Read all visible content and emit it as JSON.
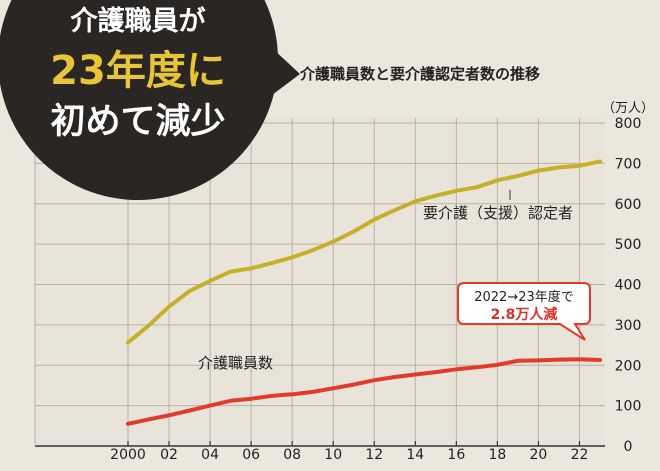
{
  "headline": {
    "line1": "介護職員が",
    "line2": "23年度に",
    "line3": "初めて減少"
  },
  "colors": {
    "background": "#ece7dd",
    "grid": "#b8b2a6",
    "badge": "#2a2624",
    "badge_text": "#ffffff",
    "badge_highlight": "#e7c43a",
    "care_recipients": "#c5b02a",
    "care_workers": "#e23b2c",
    "callout_text": "#d9332a",
    "text": "#222222"
  },
  "chart_data": {
    "type": "line",
    "title": "介護職員数と要介護認定者数の推移",
    "unit_label": "（万人）",
    "ylim": [
      0,
      800
    ],
    "y_ticks": [
      0,
      100,
      200,
      300,
      400,
      500,
      600,
      700,
      800
    ],
    "x_ticks": [
      2000,
      2002,
      2004,
      2006,
      2008,
      2010,
      2012,
      2014,
      2016,
      2018,
      2020,
      2022
    ],
    "x_tick_labels": [
      "2000",
      "02",
      "04",
      "06",
      "08",
      "10",
      "12",
      "14",
      "16",
      "18",
      "20",
      "22"
    ],
    "xlim": [
      2000,
      2023
    ],
    "grid": true,
    "series": [
      {
        "name": "要介護（支援）認定者",
        "color_key": "care_recipients",
        "x": [
          2000,
          2001,
          2002,
          2003,
          2004,
          2005,
          2006,
          2007,
          2008,
          2009,
          2010,
          2011,
          2012,
          2013,
          2014,
          2015,
          2016,
          2017,
          2018,
          2019,
          2020,
          2021,
          2022,
          2023
        ],
        "values": [
          256,
          298,
          345,
          384,
          409,
          432,
          440,
          453,
          467,
          485,
          506,
          531,
          561,
          584,
          606,
          620,
          632,
          641,
          658,
          669,
          682,
          690,
          694,
          705
        ]
      },
      {
        "name": "介護職員数",
        "color_key": "care_workers",
        "x": [
          2000,
          2001,
          2002,
          2003,
          2004,
          2005,
          2006,
          2007,
          2008,
          2009,
          2010,
          2011,
          2012,
          2013,
          2014,
          2015,
          2016,
          2017,
          2018,
          2019,
          2020,
          2021,
          2022,
          2023
        ],
        "values": [
          55,
          66,
          76,
          88,
          100,
          112,
          117,
          124,
          128,
          134,
          143,
          152,
          163,
          171,
          177,
          183,
          190,
          195,
          201,
          211,
          212,
          214,
          215,
          213
        ]
      }
    ],
    "annotation": {
      "line1": "2022→23年度で",
      "line2": "2.8万人減"
    }
  }
}
